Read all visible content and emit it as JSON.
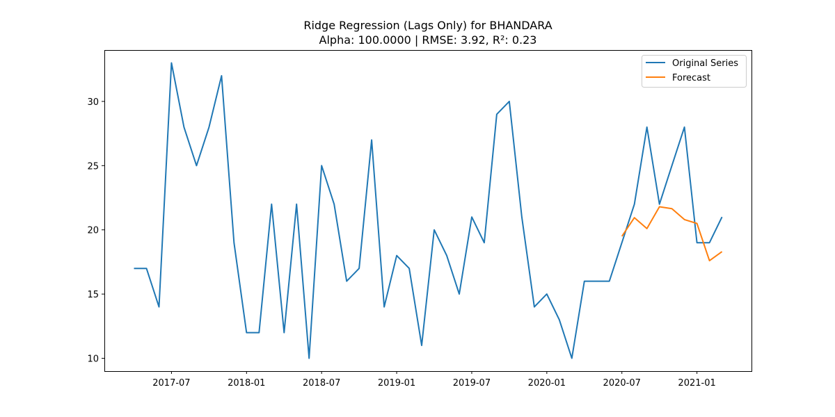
{
  "chart_data": {
    "type": "line",
    "title": "Ridge Regression (Lags Only) for BHANDARA",
    "subtitle": "Alpha: 100.0000 | RMSE: 3.92, R²: 0.23",
    "xlabel": "",
    "ylabel": "",
    "x_tick_labels": [
      "2017-07",
      "2018-01",
      "2018-07",
      "2019-01",
      "2019-07",
      "2020-01",
      "2020-07",
      "2021-01"
    ],
    "y_ticks": [
      10,
      15,
      20,
      25,
      30
    ],
    "ylim": [
      9,
      34
    ],
    "grid": false,
    "legend_placement": "top-right",
    "series": [
      {
        "name": "Original Series",
        "color": "#1f77b4",
        "x": [
          "2017-04",
          "2017-05",
          "2017-06",
          "2017-07",
          "2017-08",
          "2017-09",
          "2017-10",
          "2017-11",
          "2017-12",
          "2018-01",
          "2018-02",
          "2018-03",
          "2018-04",
          "2018-05",
          "2018-06",
          "2018-07",
          "2018-08",
          "2018-09",
          "2018-10",
          "2018-11",
          "2018-12",
          "2019-01",
          "2019-02",
          "2019-03",
          "2019-04",
          "2019-05",
          "2019-06",
          "2019-07",
          "2019-08",
          "2019-09",
          "2019-10",
          "2019-11",
          "2019-12",
          "2020-01",
          "2020-02",
          "2020-03",
          "2020-04",
          "2020-05",
          "2020-06",
          "2020-07",
          "2020-08",
          "2020-09",
          "2020-10",
          "2020-11",
          "2020-12",
          "2021-01",
          "2021-02",
          "2021-03"
        ],
        "values": [
          17,
          17,
          14,
          33,
          28,
          25,
          28,
          32,
          19,
          12,
          12,
          22,
          12,
          22,
          10,
          25,
          22,
          16,
          17,
          27,
          14,
          18,
          17,
          11,
          20,
          18,
          15,
          21,
          19,
          29,
          30,
          21,
          14,
          15,
          13,
          10,
          16,
          16,
          16,
          19,
          22,
          28,
          22,
          25,
          28,
          19,
          19,
          21
        ]
      },
      {
        "name": "Forecast",
        "color": "#ff7f0e",
        "x": [
          "2020-07",
          "2020-08",
          "2020-09",
          "2020-10",
          "2020-11",
          "2020-12",
          "2021-01",
          "2021-02",
          "2021-03"
        ],
        "values": [
          19.5,
          20.95,
          20.1,
          21.8,
          21.65,
          20.8,
          20.5,
          17.6,
          18.3
        ]
      }
    ]
  }
}
